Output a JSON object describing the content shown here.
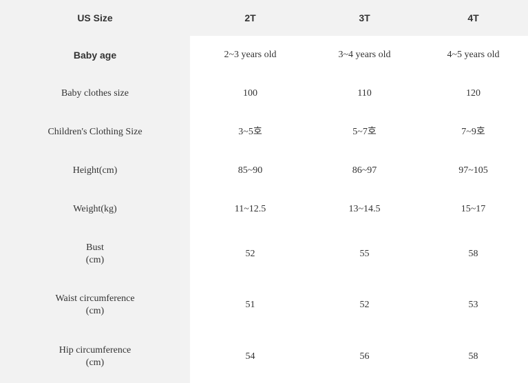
{
  "header": {
    "label": "US Size",
    "sizes": [
      "2T",
      "3T",
      "4T"
    ]
  },
  "rows": [
    {
      "label_lines": [
        "Baby age"
      ],
      "values": [
        "2~3 years old",
        "3~4 years old",
        "4~5 years old"
      ]
    },
    {
      "label_lines": [
        "Baby clothes size"
      ],
      "values": [
        "100",
        "110",
        "120"
      ]
    },
    {
      "label_lines": [
        "Children's Clothing Size"
      ],
      "values": [
        "3~5호",
        "5~7호",
        "7~9호"
      ]
    },
    {
      "label_lines": [
        "Height(cm)"
      ],
      "values": [
        "85~90",
        "86~97",
        "97~105"
      ]
    },
    {
      "label_lines": [
        "Weight(kg)"
      ],
      "values": [
        "11~12.5",
        "13~14.5",
        "15~17"
      ]
    },
    {
      "label_lines": [
        "Bust",
        "(cm)"
      ],
      "values": [
        "52",
        "55",
        "58"
      ]
    },
    {
      "label_lines": [
        "Waist circumference",
        "(cm)"
      ],
      "values": [
        "51",
        "52",
        "53"
      ]
    },
    {
      "label_lines": [
        "Hip circumference",
        "(cm)"
      ],
      "values": [
        "54",
        "56",
        "58"
      ]
    }
  ]
}
